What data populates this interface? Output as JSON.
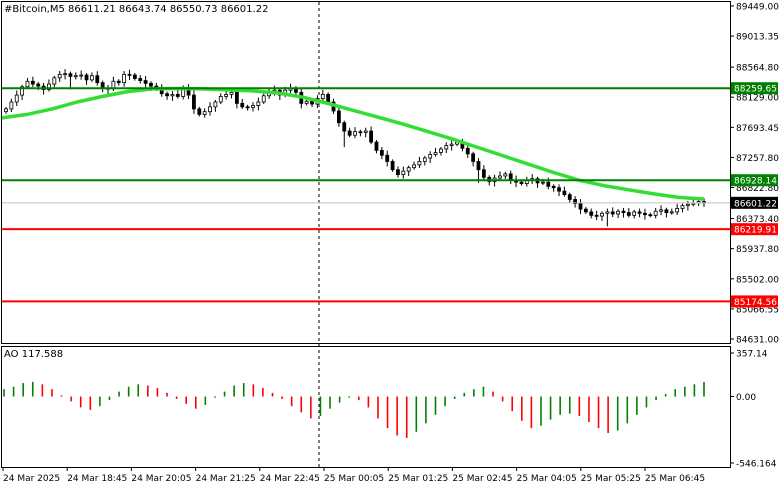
{
  "header": {
    "symbol": "#Bitcoin,M5",
    "ohlc": "86611.21 86643.74 86550.73 86601.22"
  },
  "indicator": {
    "label": "AO 117.588"
  },
  "chart_data": {
    "type": "candlestick",
    "ylim": [
      84631,
      89449
    ],
    "price_ticks": [
      "89449.00",
      "89013.35",
      "88564.80",
      "88129.00",
      "87693.45",
      "87257.80",
      "86822.80",
      "86373.40",
      "85937.80",
      "85502.00",
      "85066.55",
      "84631.00"
    ],
    "lines": [
      {
        "label": "88259.65",
        "value": 88259.65,
        "color": "#008000"
      },
      {
        "label": "86928.14",
        "value": 86928.14,
        "color": "#008000"
      },
      {
        "label": "86219.91",
        "value": 86219.91,
        "color": "#ff0000"
      },
      {
        "label": "85174.56",
        "value": 85174.56,
        "color": "#ff0000"
      }
    ],
    "current_price": "86601.22",
    "current_price_value": 86601.22,
    "ma": [
      87830,
      87880,
      87960,
      88060,
      88140,
      88210,
      88250,
      88255,
      88250,
      88235,
      88220,
      88190,
      88130,
      88040,
      87940,
      87840,
      87740,
      87630,
      87520,
      87400,
      87280,
      87160,
      87040,
      86930,
      86850,
      86790,
      86730,
      86680,
      86655
    ],
    "closes": [
      87960,
      88060,
      88160,
      88280,
      88360,
      88320,
      88290,
      88240,
      88320,
      88410,
      88460,
      88470,
      88430,
      88440,
      88450,
      88380,
      88440,
      88340,
      88260,
      88250,
      88360,
      88340,
      88460,
      88450,
      88400,
      88370,
      88330,
      88290,
      88250,
      88180,
      88150,
      88170,
      88140,
      88270,
      88160,
      87960,
      87880,
      87920,
      87990,
      88060,
      88140,
      88170,
      88200,
      88040,
      87990,
      87980,
      88010,
      88060,
      88150,
      88210,
      88230,
      88160,
      88230,
      88260,
      88200,
      88040,
      88070,
      88030,
      88110,
      88170,
      88060,
      87930,
      87760,
      87640,
      87580,
      87630,
      87620,
      87640,
      87480,
      87360,
      87290,
      87200,
      87080,
      87010,
      87060,
      87110,
      87150,
      87200,
      87250,
      87300,
      87330,
      87380,
      87430,
      87450,
      87480,
      87390,
      87310,
      87200,
      87080,
      86970,
      86910,
      86960,
      86990,
      87020,
      86930,
      86900,
      86880,
      86930,
      86950,
      86890,
      86900,
      86840,
      86820,
      86770,
      86720,
      86650,
      86590,
      86510,
      86470,
      86420,
      86410,
      86450,
      86470,
      86440,
      86480,
      86460,
      86420,
      86470,
      86450,
      86430,
      86420,
      86480,
      86500,
      86460,
      86470,
      86520,
      86560,
      86580,
      86600,
      86620,
      86601
    ],
    "ao": [
      60,
      80,
      110,
      120,
      100,
      60,
      10,
      -40,
      -90,
      -110,
      -80,
      -30,
      40,
      80,
      100,
      90,
      70,
      30,
      -20,
      -60,
      -100,
      -70,
      -10,
      40,
      90,
      110,
      100,
      70,
      30,
      -20,
      -80,
      -130,
      -180,
      -160,
      -100,
      -50,
      -10,
      -30,
      -90,
      -180,
      -260,
      -320,
      -340,
      -290,
      -220,
      -150,
      -80,
      -20,
      30,
      60,
      80,
      40,
      -40,
      -120,
      -200,
      -260,
      -240,
      -190,
      -150,
      -140,
      -160,
      -210,
      -260,
      -300,
      -280,
      -220,
      -150,
      -90,
      -30,
      20,
      60,
      80,
      100,
      120
    ],
    "ao_ticks": [
      "357.14",
      "0.00",
      "-546.164"
    ],
    "ao_range": [
      -546.164,
      357.14
    ],
    "x_ticks": [
      "24 Mar 2025",
      "24 Mar 18:45",
      "24 Mar 20:05",
      "24 Mar 21:25",
      "24 Mar 22:45",
      "25 Mar 00:05",
      "25 Mar 01:25",
      "25 Mar 02:45",
      "25 Mar 04:05",
      "25 Mar 05:25",
      "25 Mar 06:45"
    ],
    "colors": {
      "bull": "#008000",
      "bear": "#ff0000",
      "ma": "#33dd33",
      "candle": "#000000"
    }
  }
}
